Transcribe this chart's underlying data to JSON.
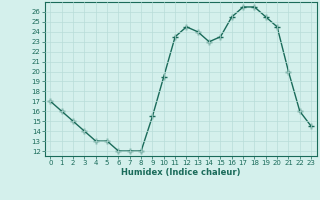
{
  "xlabel": "Humidex (Indice chaleur)",
  "x": [
    0,
    1,
    2,
    3,
    4,
    5,
    6,
    7,
    8,
    9,
    10,
    11,
    12,
    13,
    14,
    15,
    16,
    17,
    18,
    19,
    20,
    21,
    22,
    23
  ],
  "y": [
    17,
    16,
    15,
    14,
    13,
    13,
    12,
    12,
    12,
    15.5,
    19.5,
    23.5,
    24.5,
    24,
    23,
    23.5,
    25.5,
    26.5,
    26.5,
    25.5,
    24.5,
    20,
    16,
    14.5
  ],
  "line_color": "#1a6b5a",
  "bg_color": "#d4f0ec",
  "grid_color": "#b8ddd8",
  "ylim": [
    11.5,
    27
  ],
  "xlim": [
    -0.5,
    23.5
  ],
  "yticks": [
    12,
    13,
    14,
    15,
    16,
    17,
    18,
    19,
    20,
    21,
    22,
    23,
    24,
    25,
    26
  ],
  "xticks": [
    0,
    1,
    2,
    3,
    4,
    5,
    6,
    7,
    8,
    9,
    10,
    11,
    12,
    13,
    14,
    15,
    16,
    17,
    18,
    19,
    20,
    21,
    22,
    23
  ],
  "marker": "+",
  "linewidth": 1.0,
  "markersize": 4,
  "tick_fontsize": 5,
  "xlabel_fontsize": 6
}
